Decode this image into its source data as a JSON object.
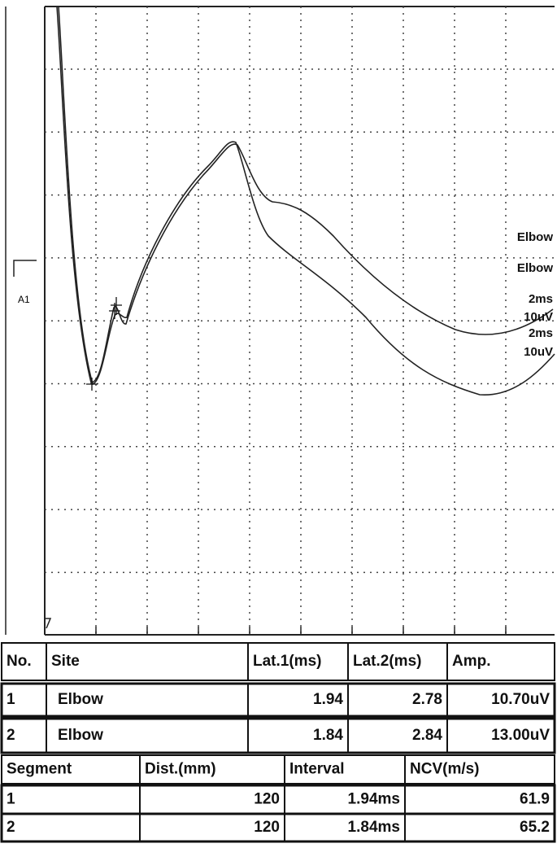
{
  "channel": "A1",
  "trace_labels": [
    {
      "site": "Elbow",
      "time_scale": "2ms",
      "amp_scale": "10uV"
    },
    {
      "site": "Elbow",
      "time_scale": "2ms",
      "amp_scale": "10uV"
    }
  ],
  "sites_table": {
    "columns": [
      "No.",
      "Site",
      "Lat.1(ms)",
      "Lat.2(ms)",
      "Amp."
    ],
    "rows": [
      [
        "1",
        "Elbow",
        "1.94",
        "2.78",
        "10.70uV"
      ],
      [
        "2",
        "Elbow",
        "1.84",
        "2.84",
        "13.00uV"
      ]
    ]
  },
  "segments_table": {
    "columns": [
      "Segment",
      "Dist.(mm)",
      "Interval",
      "NCV(m/s)"
    ],
    "rows": [
      [
        "1",
        "120",
        "1.94ms",
        "61.9"
      ],
      [
        "2",
        "120",
        "1.84ms",
        "65.2"
      ]
    ]
  }
}
